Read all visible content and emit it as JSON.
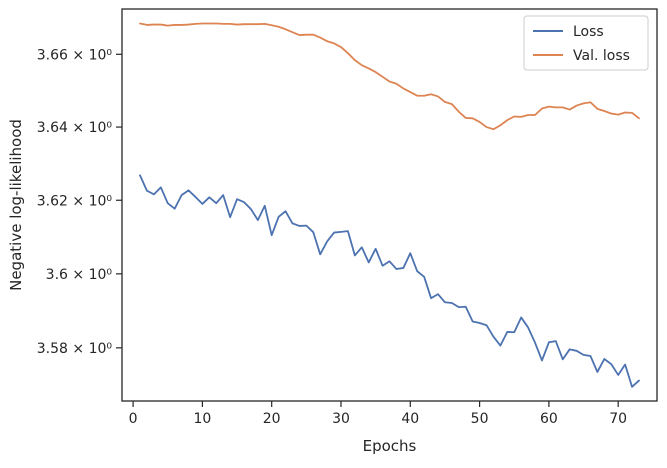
{
  "chart_data": {
    "type": "line",
    "title": "",
    "xlabel": "Epochs",
    "ylabel": "Negative log-likelihood",
    "xlim": [
      -1.6,
      75.6
    ],
    "ylim": [
      3.5657,
      3.6725
    ],
    "yscale": "log",
    "grid": false,
    "legend_position": "top-right",
    "x_ticks": [
      0,
      10,
      20,
      30,
      40,
      50,
      60,
      70
    ],
    "x_tick_labels": [
      "0",
      "10",
      "20",
      "30",
      "40",
      "50",
      "60",
      "70"
    ],
    "y_ticks": [
      3.58,
      3.6,
      3.62,
      3.64,
      3.66
    ],
    "y_tick_labels": [
      "3.58 × 10⁰",
      "3.6 × 10⁰",
      "3.62 × 10⁰",
      "3.64 × 10⁰",
      "3.66 × 10⁰"
    ],
    "x": [
      1,
      2,
      3,
      4,
      5,
      6,
      7,
      8,
      9,
      10,
      11,
      12,
      13,
      14,
      15,
      16,
      17,
      18,
      19,
      20,
      21,
      22,
      23,
      24,
      25,
      26,
      27,
      28,
      29,
      30,
      31,
      32,
      33,
      34,
      35,
      36,
      37,
      38,
      39,
      40,
      41,
      42,
      43,
      44,
      45,
      46,
      47,
      48,
      49,
      50,
      51,
      52,
      53,
      54,
      55,
      56,
      57,
      58,
      59,
      60,
      61,
      62,
      63,
      64,
      65,
      66,
      67,
      68,
      69,
      70,
      71,
      72,
      73
    ],
    "series": [
      {
        "name": "Loss",
        "color": "#4c72b0",
        "values": [
          3.6268,
          3.6226,
          3.6216,
          3.6235,
          3.6192,
          3.6177,
          3.6214,
          3.6227,
          3.6209,
          3.619,
          3.6208,
          3.6192,
          3.6214,
          3.6154,
          3.6203,
          3.6195,
          3.6176,
          3.6146,
          3.6185,
          3.6105,
          3.6155,
          3.617,
          3.6137,
          3.613,
          3.6131,
          3.6113,
          3.6053,
          3.6088,
          3.6112,
          3.6114,
          3.6116,
          3.605,
          3.6072,
          3.6031,
          3.6068,
          3.6022,
          3.6034,
          3.6013,
          3.6016,
          3.6056,
          3.6007,
          3.5992,
          3.5934,
          3.5945,
          3.5923,
          3.5921,
          3.591,
          3.5911,
          3.5871,
          3.5867,
          3.5861,
          3.583,
          3.5806,
          3.5843,
          3.5842,
          3.5882,
          3.5855,
          3.5814,
          3.5766,
          3.5815,
          3.5818,
          3.5769,
          3.5796,
          3.5792,
          3.5781,
          3.5778,
          3.5735,
          3.577,
          3.5756,
          3.5727,
          3.5755,
          3.5695,
          3.5712
        ]
      },
      {
        "name": "Val. loss",
        "color": "#dd8452",
        "values": [
          3.6685,
          3.6681,
          3.6682,
          3.6682,
          3.6679,
          3.6681,
          3.6681,
          3.6682,
          3.6684,
          3.6685,
          3.6685,
          3.6685,
          3.6684,
          3.6684,
          3.6682,
          3.6683,
          3.6683,
          3.6683,
          3.6684,
          3.668,
          3.6676,
          3.6669,
          3.6661,
          3.6653,
          3.6654,
          3.6654,
          3.6646,
          3.6636,
          3.663,
          3.662,
          3.6603,
          3.6584,
          3.657,
          3.6561,
          3.6551,
          3.6538,
          3.6525,
          3.6519,
          3.6506,
          3.6496,
          3.6486,
          3.6486,
          3.649,
          3.6484,
          3.6469,
          3.6463,
          3.6442,
          3.6425,
          3.6424,
          3.6414,
          3.64,
          3.6394,
          3.6405,
          3.6419,
          3.6429,
          3.6428,
          3.6433,
          3.6433,
          3.6451,
          3.6456,
          3.6454,
          3.6454,
          3.6448,
          3.6459,
          3.6465,
          3.6468,
          3.645,
          3.6444,
          3.6437,
          3.6434,
          3.644,
          3.6439,
          3.6424
        ]
      }
    ]
  }
}
